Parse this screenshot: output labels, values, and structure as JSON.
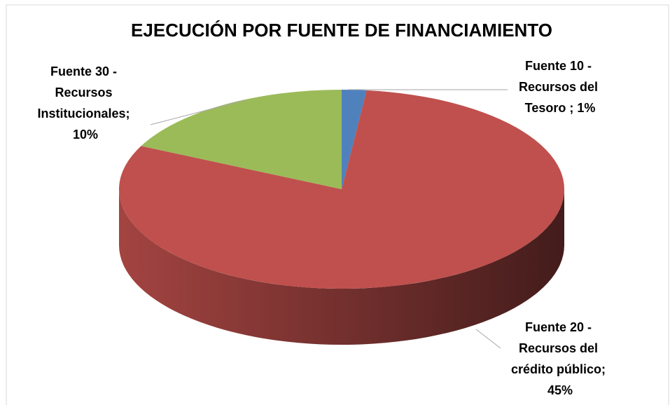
{
  "chart_data": {
    "type": "pie3d",
    "title": "EJECUCIÓN POR FUENTE DE FINANCIAMIENTO",
    "categories": [
      "Fuente 10 - Recursos del Tesoro",
      "Fuente 20 - Recursos del crédito público",
      "Fuente 30 - Recursos Institucionales"
    ],
    "values": [
      1,
      45,
      10
    ],
    "value_labels": [
      "Fuente 10 - Recursos del Tesoro ; 1%",
      "Fuente 20 - Recursos del crédito público; 45%",
      "Fuente 30 - Recursos Institucionales; 10%"
    ],
    "colors": [
      "#4f81bd",
      "#c0504d",
      "#9bbb59"
    ]
  }
}
